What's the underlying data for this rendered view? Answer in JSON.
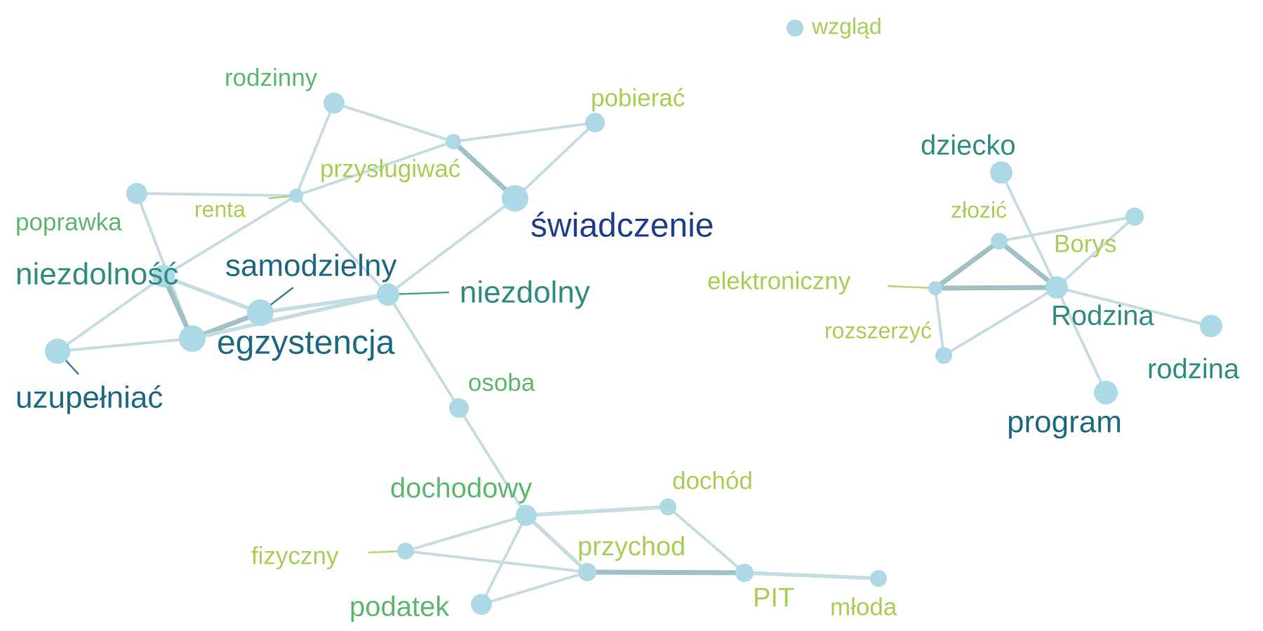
{
  "colors": {
    "node_fill": "#add8e6",
    "edge": "#c5dce0",
    "edge_strong": "#9fc0c4"
  },
  "nodes": [
    {
      "id": "wzglad",
      "label": "wzgląd",
      "color": "#a8cf55"
    },
    {
      "id": "rodzinny",
      "label": "rodzinny",
      "color": "#5cb86d"
    },
    {
      "id": "pobierac",
      "label": "pobierać",
      "color": "#a8cf55"
    },
    {
      "id": "przyslugiwac",
      "label": "przysługiwać",
      "color": "#a8cf55"
    },
    {
      "id": "renta",
      "label": "renta",
      "color": "#a8cf55"
    },
    {
      "id": "swiadczenie",
      "label": "świadczenie",
      "color": "#1e3f8f"
    },
    {
      "id": "poprawka",
      "label": "poprawka",
      "color": "#5cb86d"
    },
    {
      "id": "niezdolnosc",
      "label": "niezdolność",
      "color": "#2f8d82"
    },
    {
      "id": "samodzielny",
      "label": "samodzielny",
      "color": "#1e6a82"
    },
    {
      "id": "niezdolny",
      "label": "niezdolny",
      "color": "#2f8d82"
    },
    {
      "id": "egzystencja",
      "label": "egzystencja",
      "color": "#1e6a82"
    },
    {
      "id": "uzupelniac",
      "label": "uzupełniać",
      "color": "#1e6a82"
    },
    {
      "id": "osoba",
      "label": "osoba",
      "color": "#5cb86d"
    },
    {
      "id": "dochodowy",
      "label": "dochodowy",
      "color": "#5cb86d"
    },
    {
      "id": "dochod",
      "label": "dochód",
      "color": "#a8cf55"
    },
    {
      "id": "fizyczny",
      "label": "fizyczny",
      "color": "#a8cf55"
    },
    {
      "id": "przychod",
      "label": "przychod",
      "color": "#a8cf55"
    },
    {
      "id": "podatek",
      "label": "podatek",
      "color": "#5cb86d"
    },
    {
      "id": "PIT",
      "label": "PIT",
      "color": "#a8cf55"
    },
    {
      "id": "mloda",
      "label": "młoda",
      "color": "#a8cf55"
    },
    {
      "id": "dziecko",
      "label": "dziecko",
      "color": "#2f8d82"
    },
    {
      "id": "zlozic",
      "label": "złozić",
      "color": "#a8cf55"
    },
    {
      "id": "borys_node",
      "label": "Borys",
      "color": "#a8cf55"
    },
    {
      "id": "elektroniczny",
      "label": "elektroniczny",
      "color": "#a8cf55"
    },
    {
      "id": "Rodzina",
      "label": "Rodzina",
      "color": "#2f8d82"
    },
    {
      "id": "rozszerzyc",
      "label": "rozszerzyć",
      "color": "#a8cf55"
    },
    {
      "id": "rodzina",
      "label": "rodzina",
      "color": "#2f8d82"
    },
    {
      "id": "program",
      "label": "program",
      "color": "#1e6a82"
    }
  ],
  "edges": [
    {
      "source": "rodzinny",
      "target": "przyslugiwac",
      "weight": 1
    },
    {
      "source": "rodzinny",
      "target": "renta",
      "weight": 1
    },
    {
      "source": "przyslugiwac",
      "target": "pobierac",
      "weight": 1
    },
    {
      "source": "pobierac",
      "target": "swiadczenie",
      "weight": 1
    },
    {
      "source": "przyslugiwac",
      "target": "swiadczenie",
      "weight": 3
    },
    {
      "source": "przyslugiwac",
      "target": "renta",
      "weight": 1
    },
    {
      "source": "poprawka",
      "target": "renta",
      "weight": 1
    },
    {
      "source": "poprawka",
      "target": "egzystencja",
      "weight": 1
    },
    {
      "source": "renta",
      "target": "niezdolnosc",
      "weight": 1
    },
    {
      "source": "renta",
      "target": "niezdolny",
      "weight": 1
    },
    {
      "source": "swiadczenie",
      "target": "niezdolny",
      "weight": 1
    },
    {
      "source": "niezdolnosc",
      "target": "samodzielny",
      "weight": 2
    },
    {
      "source": "niezdolnosc",
      "target": "egzystencja",
      "weight": 3
    },
    {
      "source": "niezdolnosc",
      "target": "uzupelniac",
      "weight": 1
    },
    {
      "source": "samodzielny",
      "target": "egzystencja",
      "weight": 3
    },
    {
      "source": "samodzielny",
      "target": "niezdolny",
      "weight": 2
    },
    {
      "source": "egzystencja",
      "target": "niezdolny",
      "weight": 2
    },
    {
      "source": "uzupelniac",
      "target": "egzystencja",
      "weight": 1
    },
    {
      "source": "niezdolny",
      "target": "osoba",
      "weight": 1
    },
    {
      "source": "osoba",
      "target": "dochodowy",
      "weight": 1
    },
    {
      "source": "dochodowy",
      "target": "dochod",
      "weight": 2
    },
    {
      "source": "dochodowy",
      "target": "fizyczny",
      "weight": 1
    },
    {
      "source": "dochodowy",
      "target": "przychod",
      "weight": 2
    },
    {
      "source": "dochodowy",
      "target": "podatek",
      "weight": 1
    },
    {
      "source": "fizyczny",
      "target": "przychod",
      "weight": 1
    },
    {
      "source": "przychod",
      "target": "podatek",
      "weight": 1
    },
    {
      "source": "dochod",
      "target": "PIT",
      "weight": 1
    },
    {
      "source": "przychod",
      "target": "PIT",
      "weight": 3
    },
    {
      "source": "PIT",
      "target": "mloda",
      "weight": 2
    },
    {
      "source": "dziecko",
      "target": "Rodzina",
      "weight": 1
    },
    {
      "source": "zlozic",
      "target": "borys_node",
      "weight": 1
    },
    {
      "source": "zlozic",
      "target": "elektroniczny",
      "weight": 3
    },
    {
      "source": "zlozic",
      "target": "Rodzina",
      "weight": 3
    },
    {
      "source": "elektroniczny",
      "target": "Rodzina",
      "weight": 3
    },
    {
      "source": "elektroniczny",
      "target": "rozszerzyc",
      "weight": 1
    },
    {
      "source": "rozszerzyc",
      "target": "Rodzina",
      "weight": 1
    },
    {
      "source": "Rodzina",
      "target": "borys_node",
      "weight": 1
    },
    {
      "source": "Rodzina",
      "target": "rodzina",
      "weight": 1
    },
    {
      "source": "Rodzina",
      "target": "program",
      "weight": 1
    }
  ]
}
